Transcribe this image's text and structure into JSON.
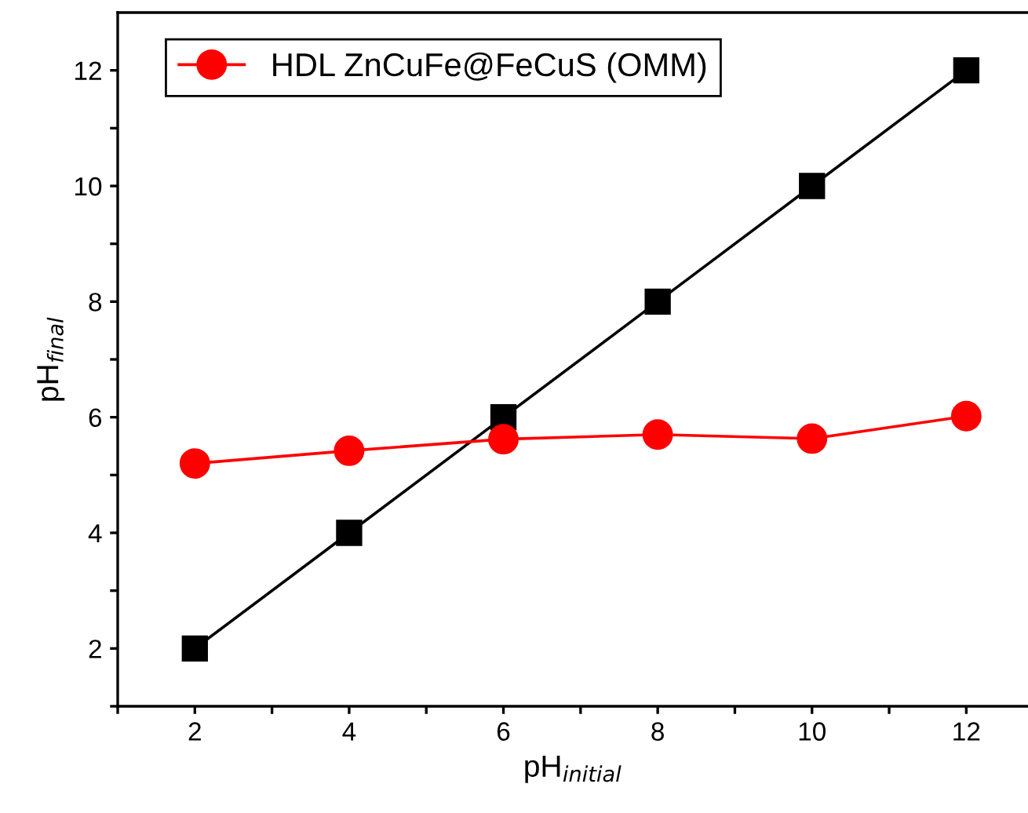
{
  "chart_data": {
    "type": "line",
    "xlabel": "pH$_{initial}$",
    "ylabel": "pH$_{final}$",
    "x": [
      2,
      4,
      6,
      8,
      10,
      12
    ],
    "series": [
      {
        "color": "#000000",
        "marker": "square",
        "values": [
          2,
          4,
          6,
          8,
          10,
          12
        ]
      },
      {
        "name": "HDL ZnCuFe@FeCuS (OMM)",
        "color": "#ff0000",
        "marker": "circle",
        "values": [
          5.2,
          5.42,
          5.62,
          5.7,
          5.63,
          6.02
        ]
      }
    ],
    "xlim": [
      1,
      12.8
    ],
    "ylim": [
      1,
      13
    ],
    "xticks": [
      {
        "value": 1,
        "label": null
      },
      2,
      {
        "value": 3,
        "label": null
      },
      4,
      {
        "value": 5,
        "label": null
      },
      6,
      {
        "value": 7,
        "label": null
      },
      8,
      {
        "value": 9,
        "label": null
      },
      10,
      {
        "value": 11,
        "label": null
      },
      12
    ],
    "yticks": [
      {
        "value": 1,
        "label": null
      },
      2,
      {
        "value": 3,
        "label": null
      },
      4,
      {
        "value": 5,
        "label": null
      },
      6,
      {
        "value": 7,
        "label": null
      },
      8,
      {
        "value": 9,
        "label": null
      },
      10,
      {
        "value": 11,
        "label": null
      },
      12
    ],
    "grid": false,
    "legend": "top left",
    "line_style": "solid"
  }
}
